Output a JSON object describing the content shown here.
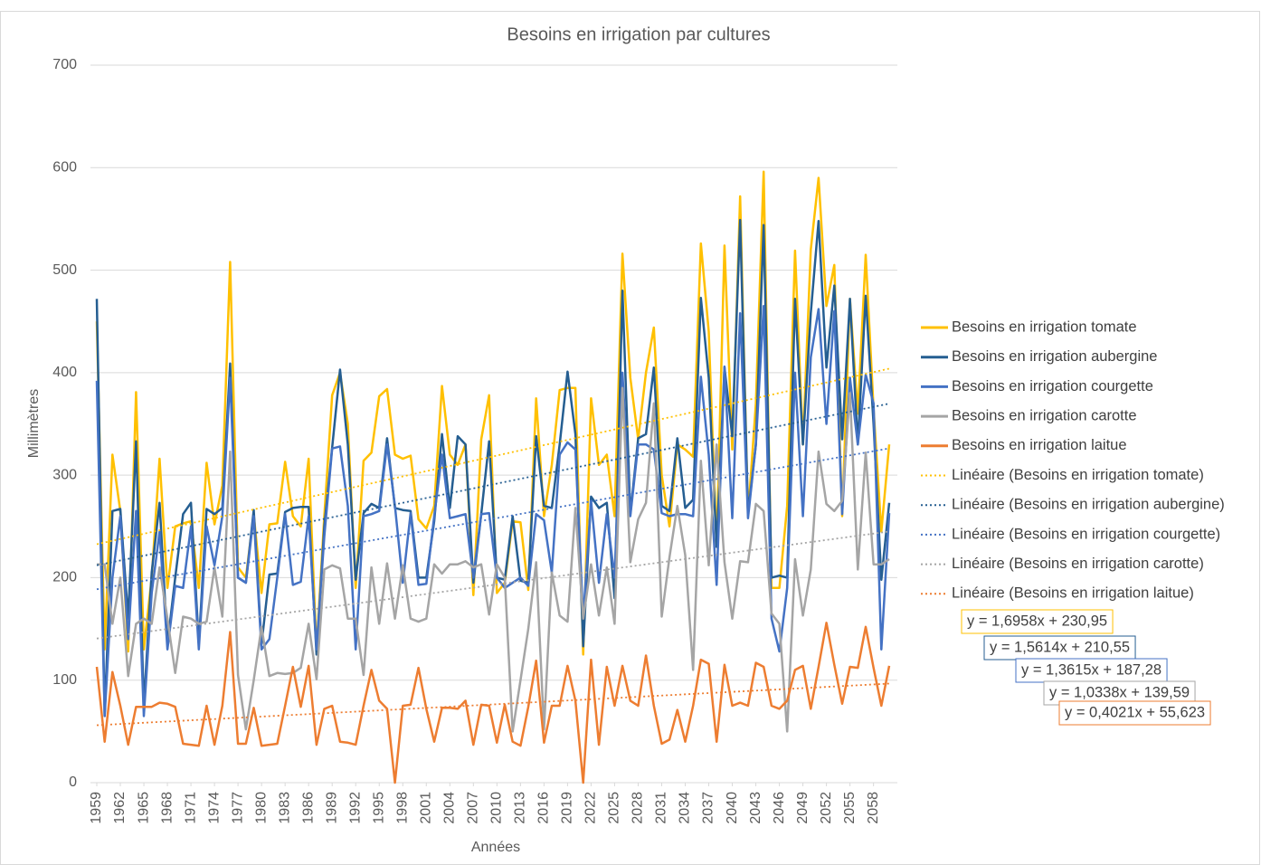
{
  "chart_data": {
    "type": "line",
    "title": "Besoins en irrigation par cultures",
    "x_label": "Années",
    "y_label": "Millimètres",
    "x": [
      1959,
      1960,
      1961,
      1962,
      1963,
      1964,
      1965,
      1966,
      1967,
      1968,
      1969,
      1970,
      1971,
      1972,
      1973,
      1974,
      1975,
      1976,
      1977,
      1978,
      1979,
      1980,
      1981,
      1982,
      1983,
      1984,
      1985,
      1986,
      1987,
      1988,
      1989,
      1990,
      1991,
      1992,
      1993,
      1994,
      1995,
      1996,
      1997,
      1998,
      1999,
      2000,
      2001,
      2002,
      2003,
      2004,
      2005,
      2006,
      2007,
      2008,
      2009,
      2010,
      2011,
      2012,
      2013,
      2014,
      2015,
      2016,
      2017,
      2018,
      2019,
      2020,
      2021,
      2022,
      2023,
      2024,
      2025,
      2026,
      2027,
      2028,
      2029,
      2030,
      2031,
      2032,
      2033,
      2034,
      2035,
      2036,
      2037,
      2038,
      2039,
      2040,
      2041,
      2042,
      2043,
      2044,
      2045,
      2046,
      2047,
      2048,
      2049,
      2050,
      2051,
      2052,
      2053,
      2054,
      2055,
      2056,
      2057,
      2058,
      2059,
      2060
    ],
    "xlim": [
      1959,
      2060
    ],
    "xticks": [
      1959,
      1962,
      1965,
      1968,
      1971,
      1974,
      1977,
      1980,
      1983,
      1986,
      1989,
      1992,
      1995,
      1998,
      2001,
      2004,
      2007,
      2010,
      2013,
      2016,
      2019,
      2022,
      2025,
      2028,
      2031,
      2034,
      2037,
      2040,
      2043,
      2046,
      2049,
      2052,
      2055,
      2058
    ],
    "ylim": [
      0,
      700
    ],
    "yticks": [
      0,
      100,
      200,
      300,
      400,
      500,
      600,
      700
    ],
    "grid": true,
    "legend": "right",
    "series": [
      {
        "name": "Besoins en irrigation tomate",
        "color": "#FFC000",
        "values": [
          450,
          130,
          320,
          265,
          128,
          381,
          130,
          200,
          316,
          190,
          250,
          253,
          255,
          190,
          312,
          252,
          290,
          508,
          210,
          200,
          262,
          185,
          252,
          253,
          313,
          260,
          250,
          316,
          130,
          260,
          378,
          400,
          350,
          190,
          314,
          322,
          377,
          384,
          320,
          316,
          319,
          257,
          248,
          270,
          387,
          320,
          310,
          330,
          183,
          335,
          378,
          185,
          195,
          255,
          254,
          188,
          375,
          260,
          310,
          383,
          385,
          385,
          125,
          375,
          310,
          320,
          260,
          516,
          395,
          335,
          400,
          444,
          300,
          250,
          330,
          325,
          318,
          526,
          440,
          230,
          524,
          325,
          572,
          260,
          370,
          596,
          190,
          190,
          270,
          519,
          330,
          520,
          590,
          465,
          505,
          260,
          472,
          360,
          515,
          365,
          245,
          330
        ],
        "trendline": {
          "name": "Linéaire (Besoins en irrigation tomate)",
          "slope": 1.6958,
          "intercept": 230.95,
          "label": "y = 1,6958x + 230,95"
        }
      },
      {
        "name": "Besoins en irrigation aubergine",
        "color": "#255E91",
        "values": [
          472,
          65,
          265,
          267,
          160,
          333,
          75,
          205,
          273,
          135,
          200,
          262,
          273,
          135,
          267,
          262,
          268,
          409,
          200,
          195,
          266,
          135,
          203,
          204,
          264,
          268,
          269,
          269,
          125,
          250,
          327,
          403,
          330,
          198,
          263,
          272,
          268,
          336,
          268,
          266,
          265,
          200,
          200,
          255,
          340,
          268,
          338,
          330,
          195,
          262,
          333,
          200,
          198,
          260,
          197,
          195,
          338,
          270,
          268,
          330,
          401,
          340,
          133,
          279,
          268,
          273,
          180,
          480,
          262,
          336,
          340,
          405,
          270,
          265,
          336,
          268,
          276,
          473,
          395,
          230,
          405,
          338,
          549,
          262,
          330,
          544,
          200,
          202,
          200,
          472,
          330,
          458,
          548,
          405,
          485,
          335,
          472,
          330,
          475,
          350,
          198,
          273
        ],
        "trendline": {
          "name": "Linéaire (Besoins en irrigation aubergine)",
          "slope": 1.5614,
          "intercept": 210.55,
          "label": "y = 1,5614x + 210,55"
        }
      },
      {
        "name": "Besoins en irrigation courgette",
        "color": "#4472C4",
        "values": [
          392,
          65,
          200,
          260,
          140,
          265,
          65,
          185,
          245,
          130,
          192,
          190,
          250,
          130,
          250,
          212,
          260,
          395,
          200,
          195,
          260,
          130,
          140,
          200,
          262,
          193,
          196,
          260,
          130,
          240,
          326,
          328,
          270,
          130,
          260,
          262,
          265,
          330,
          270,
          195,
          263,
          193,
          194,
          260,
          320,
          258,
          260,
          262,
          200,
          262,
          263,
          200,
          190,
          195,
          200,
          192,
          262,
          256,
          205,
          320,
          332,
          325,
          160,
          275,
          195,
          262,
          200,
          400,
          260,
          330,
          330,
          325,
          263,
          260,
          262,
          262,
          260,
          396,
          320,
          193,
          406,
          258,
          458,
          258,
          330,
          465,
          160,
          128,
          190,
          400,
          260,
          415,
          462,
          350,
          460,
          262,
          395,
          330,
          398,
          370,
          130,
          263
        ],
        "trendline": {
          "name": "Linéaire (Besoins en irrigation courgette)",
          "slope": 1.3615,
          "intercept": 187.28,
          "label": "y = 1,3615x + 187,28"
        }
      },
      {
        "name": "Besoins en irrigation carotte",
        "color": "#A5A5A5",
        "values": [
          213,
          213,
          155,
          200,
          104,
          155,
          160,
          155,
          210,
          160,
          107,
          162,
          160,
          155,
          157,
          210,
          162,
          323,
          105,
          52,
          100,
          152,
          104,
          107,
          106,
          107,
          112,
          155,
          101,
          208,
          212,
          209,
          160,
          160,
          105,
          210,
          155,
          214,
          160,
          212,
          160,
          157,
          160,
          213,
          204,
          213,
          213,
          216,
          210,
          213,
          164,
          213,
          200,
          50,
          100,
          150,
          215,
          52,
          205,
          163,
          157,
          268,
          160,
          213,
          163,
          210,
          155,
          385,
          215,
          257,
          273,
          370,
          162,
          220,
          270,
          222,
          110,
          314,
          212,
          330,
          215,
          160,
          216,
          215,
          272,
          265,
          165,
          155,
          50,
          218,
          163,
          208,
          323,
          272,
          265,
          275,
          380,
          208,
          322,
          213,
          213,
          218
        ],
        "trendline": {
          "name": "Linéaire (Besoins en irrigation carotte)",
          "slope": 1.0338,
          "intercept": 139.59,
          "label": "y = 1,0338x + 139,59"
        }
      },
      {
        "name": "Besoins en irrigation laitue",
        "color": "#ED7D31",
        "values": [
          113,
          40,
          108,
          75,
          37,
          74,
          74,
          74,
          78,
          77,
          74,
          38,
          37,
          36,
          75,
          37,
          75,
          147,
          38,
          38,
          73,
          36,
          37,
          38,
          75,
          113,
          74,
          114,
          37,
          72,
          75,
          40,
          39,
          37,
          75,
          110,
          80,
          72,
          0,
          75,
          76,
          112,
          72,
          40,
          73,
          73,
          72,
          80,
          37,
          76,
          75,
          39,
          76,
          40,
          36,
          74,
          119,
          39,
          75,
          75,
          114,
          80,
          0,
          120,
          37,
          113,
          75,
          114,
          80,
          75,
          124,
          75,
          38,
          42,
          71,
          40,
          75,
          120,
          116,
          40,
          115,
          75,
          78,
          75,
          117,
          113,
          75,
          72,
          80,
          110,
          114,
          72,
          113,
          156,
          115,
          77,
          113,
          112,
          152,
          112,
          75,
          114
        ],
        "trendline": {
          "name": "Linéaire (Besoins en irrigation laitue)",
          "slope": 0.4021,
          "intercept": 55.623,
          "label": "y = 0,4021x + 55,623"
        }
      }
    ]
  }
}
